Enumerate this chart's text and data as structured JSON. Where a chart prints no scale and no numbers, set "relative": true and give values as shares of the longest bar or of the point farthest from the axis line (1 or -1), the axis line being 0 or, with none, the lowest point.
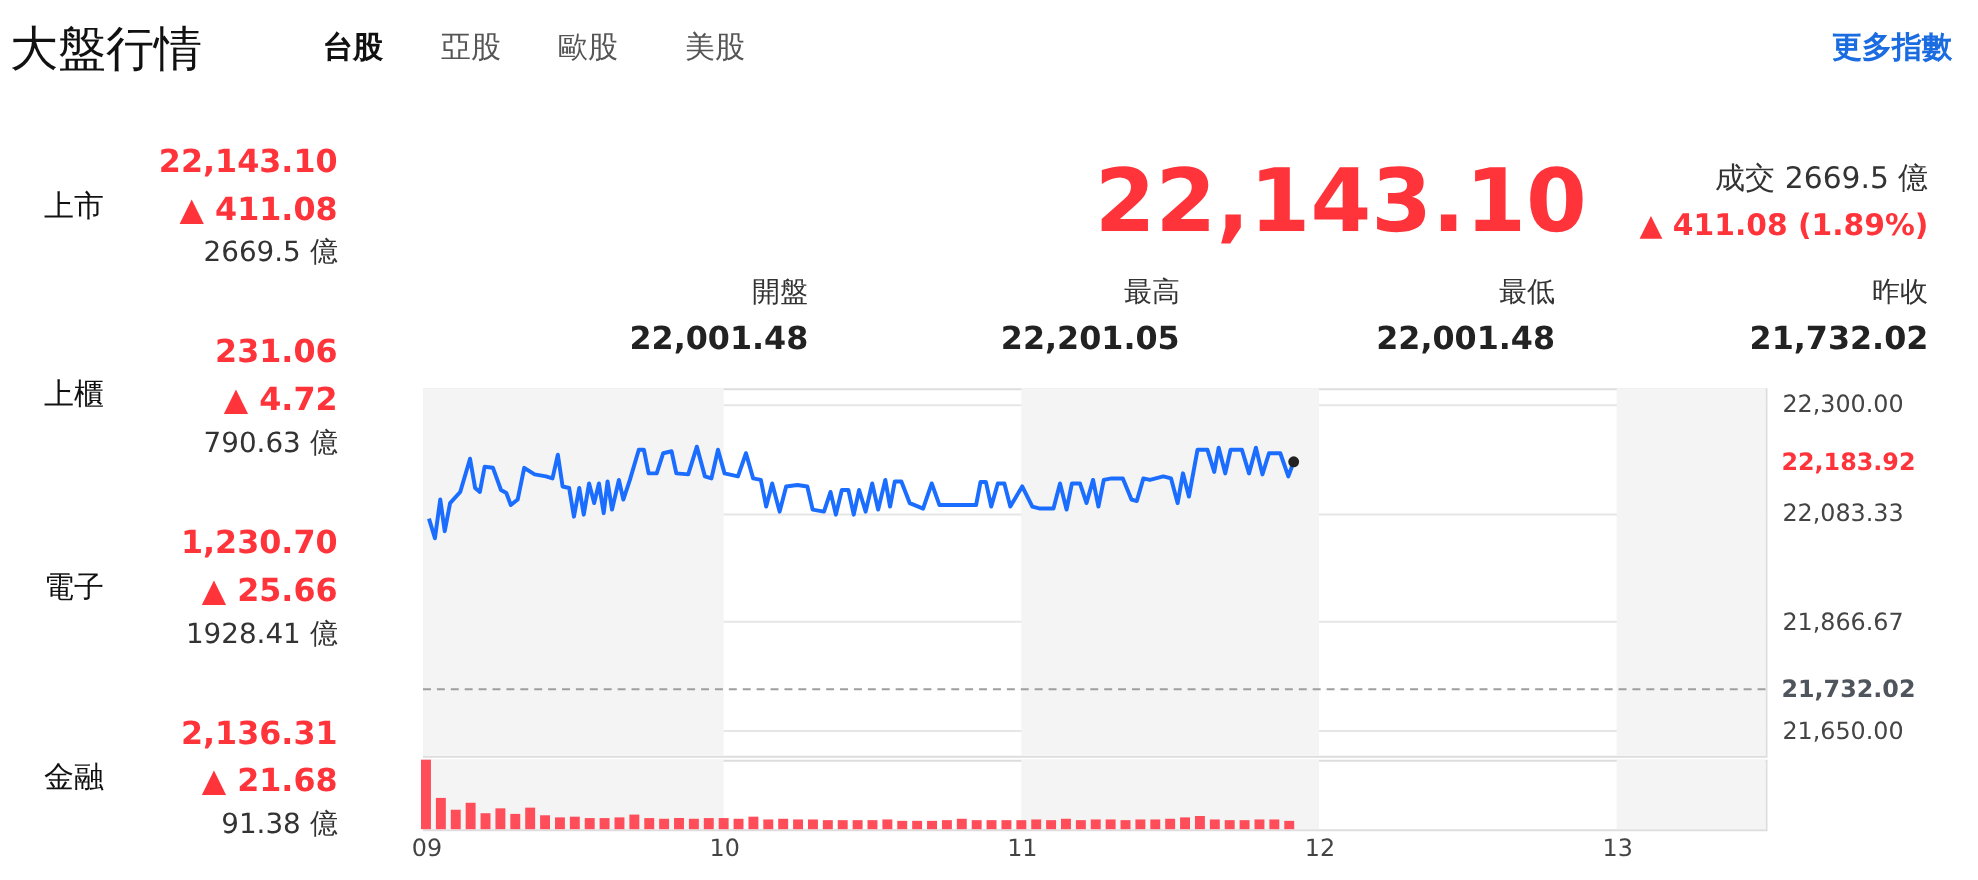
{
  "chart_data": [
    {
      "type": "line",
      "color": "#1a6dff",
      "x": [
        9.01,
        9.03,
        9.048,
        9.063,
        9.081,
        9.115,
        9.148,
        9.165,
        9.181,
        9.197,
        9.225,
        9.252,
        9.27,
        9.285,
        9.308,
        9.33,
        9.365,
        9.403,
        9.425,
        9.443,
        9.459,
        9.481,
        9.497,
        9.515,
        9.53,
        9.548,
        9.565,
        9.581,
        9.597,
        9.61,
        9.625,
        9.648,
        9.663,
        9.685,
        9.715,
        9.732,
        9.748,
        9.775,
        9.797,
        9.825,
        9.841,
        9.881,
        9.91,
        9.937,
        9.959,
        9.981,
        10.003,
        10.048,
        10.075,
        10.099,
        10.125,
        10.143,
        10.163,
        10.188,
        10.21,
        10.248,
        10.281,
        10.299,
        10.337,
        10.359,
        10.377,
        10.397,
        10.419,
        10.437,
        10.455,
        10.477,
        10.499,
        10.519,
        10.543,
        10.559,
        10.575,
        10.597,
        10.625,
        10.67,
        10.699,
        10.725,
        10.781,
        10.848,
        10.863,
        10.881,
        10.899,
        10.921,
        10.943,
        10.963,
        11.003,
        11.037,
        11.063,
        11.108,
        11.13,
        11.152,
        11.17,
        11.197,
        11.219,
        11.241,
        11.259,
        11.277,
        11.303,
        11.341,
        11.37,
        11.388,
        11.41,
        11.432,
        11.477,
        11.503,
        11.525,
        11.543,
        11.563,
        11.592,
        11.625,
        11.648,
        11.663,
        11.685,
        11.703,
        11.741,
        11.765,
        11.788,
        11.81,
        11.832,
        11.87,
        11.897,
        11.915
      ],
      "values": [
        22071,
        22032,
        22109,
        22046,
        22102,
        22124,
        22190,
        22132,
        22124,
        22174,
        22172,
        22128,
        22122,
        22098,
        22109,
        22172,
        22159,
        22155,
        22151,
        22198,
        22135,
        22132,
        22075,
        22132,
        22079,
        22141,
        22102,
        22141,
        22082,
        22145,
        22089,
        22148,
        22109,
        22148,
        22208,
        22208,
        22161,
        22161,
        22201,
        22205,
        22161,
        22159,
        22214,
        22155,
        22151,
        22208,
        22161,
        22155,
        22201,
        22151,
        22148,
        22095,
        22141,
        22085,
        22135,
        22138,
        22135,
        22089,
        22085,
        22124,
        22079,
        22128,
        22128,
        22079,
        22128,
        22085,
        22141,
        22089,
        22148,
        22095,
        22145,
        22145,
        22102,
        22091,
        22141,
        22098,
        22098,
        22098,
        22144,
        22144,
        22095,
        22141,
        22141,
        22095,
        22135,
        22095,
        22091,
        22091,
        22141,
        22089,
        22141,
        22141,
        22102,
        22148,
        22095,
        22148,
        22151,
        22151,
        22109,
        22106,
        22151,
        22148,
        22155,
        22151,
        22102,
        22161,
        22115,
        22208,
        22208,
        22164,
        22212,
        22161,
        22208,
        22208,
        22161,
        22212,
        22159,
        22201,
        22201,
        22155,
        22184
      ],
      "xlim": [
        8.99,
        13.5
      ],
      "ylim": [
        21600,
        22330
      ],
      "yticks": [
        {
          "value": 22300,
          "label": "22,300.00"
        },
        {
          "value": 22083.33,
          "label": "22,083.33"
        },
        {
          "value": 21866.67,
          "label": "21,866.67"
        },
        {
          "value": 21650,
          "label": "21,650.00"
        }
      ],
      "grid": "y",
      "tick_labels": "y",
      "bands": [
        {
          "axis": "x",
          "from": 8.99,
          "to": 10,
          "color": "#f4f4f4"
        },
        {
          "axis": "x",
          "from": 11,
          "to": 12,
          "color": "#f4f4f4"
        },
        {
          "axis": "x",
          "from": 13,
          "to": 13.5,
          "color": "#f4f4f4"
        }
      ],
      "ref_lines": [
        {
          "axis": "y",
          "value": 21732.02,
          "label": "21,732.02",
          "color": "#9e9e9e",
          "line_style": "dashed"
        }
      ],
      "annotations": [
        "大盤行情",
        "台股",
        "亞股",
        "歐股",
        "美股",
        "更多指數",
        "上市",
        "22,143.10",
        "▲ 411.08",
        "2669.5 億",
        "上櫃",
        "231.06",
        "▲ 4.72",
        "790.63 億",
        "電子",
        "1,230.70",
        "▲ 25.66",
        "1928.41 億",
        "金融",
        "2,136.31",
        "▲ 21.68",
        "91.38 億",
        "22,143.10",
        "成交 2669.5 億",
        "▲ 411.08 (1.89%)",
        "開盤",
        "22,001.48",
        "最高",
        "22,201.05",
        "最低",
        "22,001.48",
        "昨收",
        "21,732.02",
        {
          "text": "22,183.92",
          "x": 13.5,
          "y": 22184
        }
      ]
    },
    {
      "type": "bar",
      "color": "#ff4d5a",
      "relative": true,
      "x": [
        9.0,
        9.05,
        9.1,
        9.15,
        9.2,
        9.25,
        9.3,
        9.35,
        9.4,
        9.45,
        9.5,
        9.55,
        9.6,
        9.65,
        9.7,
        9.75,
        9.8,
        9.85,
        9.9,
        9.95,
        10.0,
        10.05,
        10.1,
        10.15,
        10.2,
        10.25,
        10.3,
        10.35,
        10.4,
        10.45,
        10.5,
        10.55,
        10.6,
        10.65,
        10.7,
        10.75,
        10.8,
        10.85,
        10.9,
        10.95,
        11.0,
        11.05,
        11.1,
        11.15,
        11.2,
        11.25,
        11.3,
        11.35,
        11.4,
        11.45,
        11.5,
        11.55,
        11.6,
        11.65,
        11.7,
        11.75,
        11.8,
        11.85,
        11.9
      ],
      "values": [
        1.0,
        0.45,
        0.28,
        0.38,
        0.23,
        0.3,
        0.22,
        0.31,
        0.2,
        0.17,
        0.18,
        0.16,
        0.16,
        0.17,
        0.21,
        0.16,
        0.15,
        0.16,
        0.15,
        0.16,
        0.16,
        0.15,
        0.18,
        0.14,
        0.15,
        0.14,
        0.14,
        0.13,
        0.13,
        0.13,
        0.13,
        0.14,
        0.12,
        0.12,
        0.12,
        0.13,
        0.15,
        0.13,
        0.13,
        0.13,
        0.13,
        0.14,
        0.13,
        0.15,
        0.13,
        0.14,
        0.14,
        0.13,
        0.14,
        0.14,
        0.15,
        0.17,
        0.19,
        0.14,
        0.13,
        0.13,
        0.14,
        0.14,
        0.12
      ],
      "xlim": [
        8.99,
        13.5
      ],
      "xticks": [
        {
          "value": 9,
          "label": "09"
        },
        {
          "value": 10,
          "label": "10"
        },
        {
          "value": 11,
          "label": "11"
        },
        {
          "value": 12,
          "label": "12"
        },
        {
          "value": 13,
          "label": "13"
        }
      ],
      "tick_labels": "x",
      "bands": [
        {
          "axis": "x",
          "from": 8.99,
          "to": 10,
          "color": "#f4f4f4"
        },
        {
          "axis": "x",
          "from": 11,
          "to": 12,
          "color": "#f4f4f4"
        },
        {
          "axis": "x",
          "from": 13,
          "to": 13.5,
          "color": "#f4f4f4"
        }
      ]
    }
  ]
}
